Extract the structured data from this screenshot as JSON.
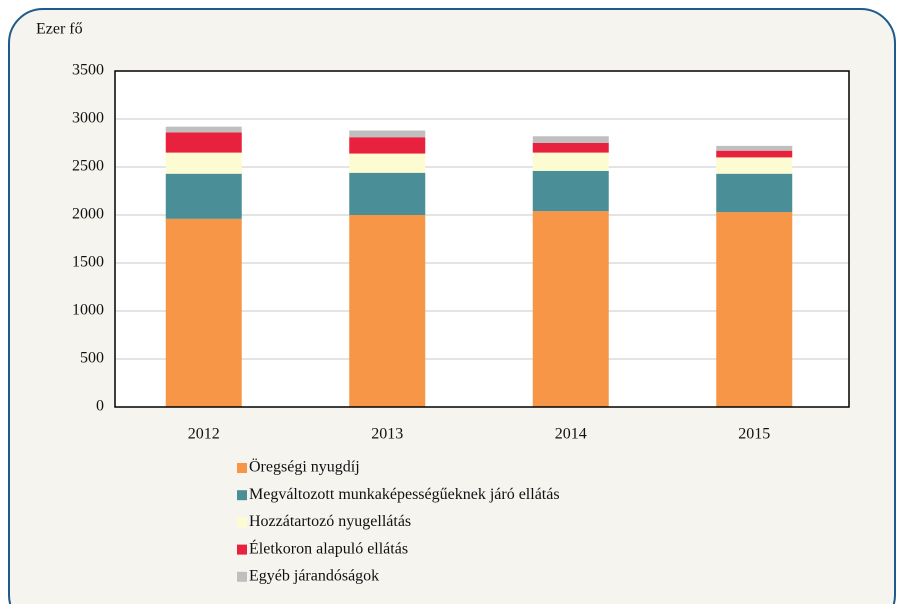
{
  "chart_data": {
    "type": "stacked_bar",
    "y_label": "Ezer fő",
    "categories": [
      "2012",
      "2013",
      "2014",
      "2015"
    ],
    "series": [
      {
        "name": "Öregségi nyugdíj",
        "color": "#f79646",
        "values": [
          1960,
          2000,
          2040,
          2030
        ]
      },
      {
        "name": "Megváltozott munkaképességűeknek járó ellátás",
        "color": "#4a8f98",
        "values": [
          470,
          440,
          420,
          400
        ]
      },
      {
        "name": "Hozzátartozó nyugellátás",
        "color": "#fdfbd2",
        "values": [
          220,
          200,
          190,
          170
        ]
      },
      {
        "name": "Életkoron alapuló ellátás",
        "color": "#e8213f",
        "values": [
          210,
          170,
          100,
          70
        ]
      },
      {
        "name": "Egyéb járandóságok",
        "color": "#bfbfbf",
        "values": [
          60,
          70,
          70,
          50
        ]
      }
    ],
    "ylim": [
      0,
      3500
    ],
    "yticks": [
      0,
      500,
      1000,
      1500,
      2000,
      2500,
      3000,
      3500
    ],
    "grid": true
  }
}
